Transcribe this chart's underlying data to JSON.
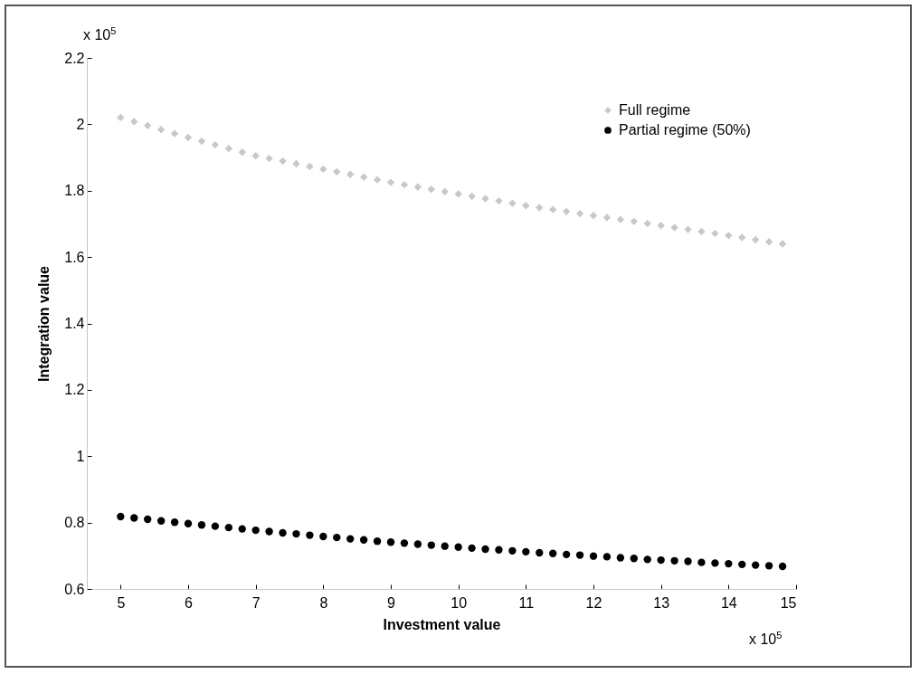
{
  "chart_data": {
    "type": "scatter",
    "xlabel": "Investment value",
    "ylabel": "Integration value",
    "annotations": [
      "x 10$^{5}$",
      "x 10$^{5}$"
    ],
    "x": [
      5,
      5.2,
      5.4,
      5.6,
      5.8,
      6,
      6.2,
      6.4,
      6.6,
      6.8,
      7,
      7.2,
      7.4,
      7.6,
      7.8,
      8,
      8.2,
      8.4,
      8.6,
      8.8,
      9,
      9.2,
      9.4,
      9.6,
      9.8,
      10,
      10.2,
      10.4,
      10.6,
      10.8,
      11,
      11.2,
      11.4,
      11.6,
      11.8,
      12,
      12.2,
      12.4,
      12.6,
      12.8,
      13,
      13.2,
      13.4,
      13.6,
      13.8,
      14,
      14.2,
      14.4,
      14.6,
      14.8
    ],
    "series": [
      {
        "name": "Full regime",
        "color": "#c8c8c8",
        "marker": "diamond",
        "values": [
          2.02,
          2.008,
          1.996,
          1.984,
          1.972,
          1.96,
          1.949,
          1.938,
          1.927,
          1.916,
          1.905,
          1.897,
          1.889,
          1.881,
          1.873,
          1.865,
          1.857,
          1.849,
          1.841,
          1.833,
          1.825,
          1.818,
          1.811,
          1.804,
          1.797,
          1.79,
          1.783,
          1.776,
          1.769,
          1.762,
          1.755,
          1.749,
          1.743,
          1.737,
          1.731,
          1.725,
          1.719,
          1.713,
          1.707,
          1.701,
          1.695,
          1.689,
          1.683,
          1.677,
          1.671,
          1.665,
          1.659,
          1.652,
          1.646,
          1.64
        ]
      },
      {
        "name": "Partial regime (50%)",
        "color": "#000000",
        "marker": "circle",
        "values": [
          0.818,
          0.814,
          0.81,
          0.805,
          0.801,
          0.797,
          0.793,
          0.789,
          0.785,
          0.781,
          0.777,
          0.773,
          0.769,
          0.766,
          0.762,
          0.758,
          0.755,
          0.751,
          0.748,
          0.744,
          0.741,
          0.738,
          0.735,
          0.732,
          0.729,
          0.726,
          0.723,
          0.72,
          0.718,
          0.715,
          0.712,
          0.709,
          0.707,
          0.704,
          0.702,
          0.699,
          0.697,
          0.694,
          0.692,
          0.689,
          0.687,
          0.685,
          0.683,
          0.68,
          0.678,
          0.676,
          0.674,
          0.672,
          0.67,
          0.668
        ]
      }
    ],
    "xlim": [
      4.5,
      15
    ],
    "xticks": [
      5,
      6,
      7,
      8,
      9,
      10,
      11,
      12,
      13,
      14,
      15
    ],
    "ylim": [
      0.6,
      2.2
    ],
    "yticks": [
      0.6,
      0.8,
      1,
      1.2,
      1.4,
      1.6,
      1.8,
      2,
      2.2
    ],
    "grid": false,
    "legend": "top right"
  }
}
